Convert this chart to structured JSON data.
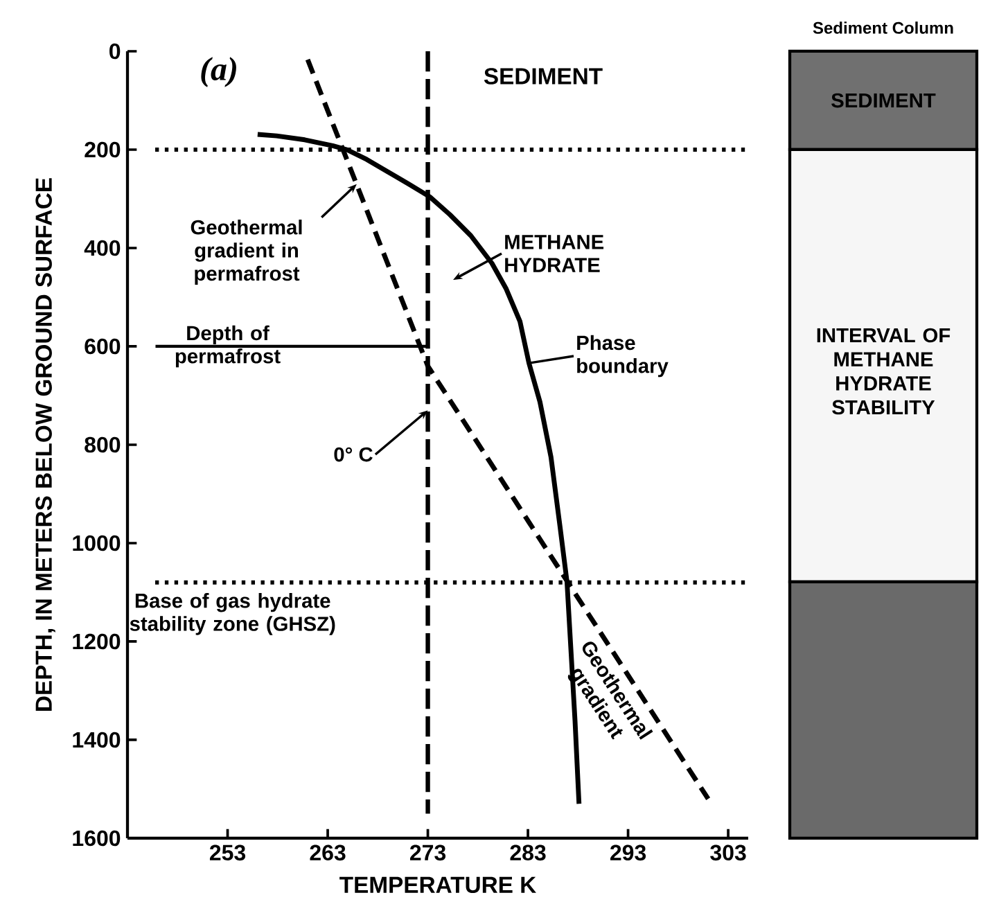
{
  "chart_data": [
    {
      "type": "line",
      "xlabel": "TEMPERATURE K",
      "ylabel": "DEPTH, IN METERS BELOW GROUND SURFACE",
      "xlim": [
        243,
        305
      ],
      "ylim": [
        1600,
        0
      ],
      "xticks": [
        253,
        263,
        273,
        283,
        293,
        303
      ],
      "yticks": [
        0,
        200,
        400,
        600,
        800,
        1000,
        1200,
        1400,
        1600
      ],
      "grid": false,
      "marker": "none",
      "series": [
        {
          "color": "#000000",
          "line_style": "solid",
          "x": [
            256.0,
            257.9,
            260.7,
            263.5,
            264.9,
            266.9,
            269.0,
            271.1,
            273.2,
            275.2,
            277.3,
            279.4,
            280.8,
            282.2,
            283.1,
            284.2,
            285.3,
            286.2,
            286.9,
            287.3,
            287.7,
            288.1
          ],
          "values": [
            169,
            172,
            180,
            192,
            200,
            220,
            245,
            270,
            296,
            332,
            375,
            431,
            482,
            549,
            634,
            713,
            825,
            966,
            1079,
            1220,
            1361,
            1530
          ]
        },
        {
          "color": "#000000",
          "line_style": "dashed",
          "x": [
            261,
            273,
            301
          ],
          "values": [
            17,
            640,
            1520
          ]
        },
        {
          "color": "#000000",
          "line_style": "dashed",
          "x": [
            273,
            273
          ],
          "values": [
            0,
            1550
          ]
        },
        {
          "color": "#000000",
          "line_style": "solid",
          "x": [
            245.8,
            273
          ],
          "values": [
            600,
            600
          ]
        }
      ],
      "ref_lines": [
        {
          "axis": "y",
          "value": 200,
          "line_style": "dotted",
          "color": "#000000"
        },
        {
          "axis": "y",
          "value": 1080,
          "line_style": "dotted",
          "color": "#000000"
        }
      ],
      "annotations": [
        "(a)",
        "SEDIMENT",
        {
          "text": "Geothermal gradient in permafrost",
          "x": 265.9,
          "y": 270
        },
        "METHANE HYDRATE",
        {
          "text": "Phase boundary",
          "x": 283.1,
          "y": 634
        },
        {
          "text": "Depth of permafrost",
          "x": 253,
          "y": 600
        },
        {
          "text": "0° C",
          "x": 273,
          "y": 730
        },
        {
          "text": "Base of gas hydrate stability zone (GHSZ)",
          "x": 253.5,
          "y": 1080
        },
        {
          "text": "Geothermal gradient",
          "x": 292,
          "y": 1239
        }
      ]
    },
    {
      "type": "other",
      "title": "Sediment Column",
      "annotations": [
        "SEDIMENT",
        "INTERVAL OF METHANE HYDRATE STABILITY"
      ]
    }
  ]
}
